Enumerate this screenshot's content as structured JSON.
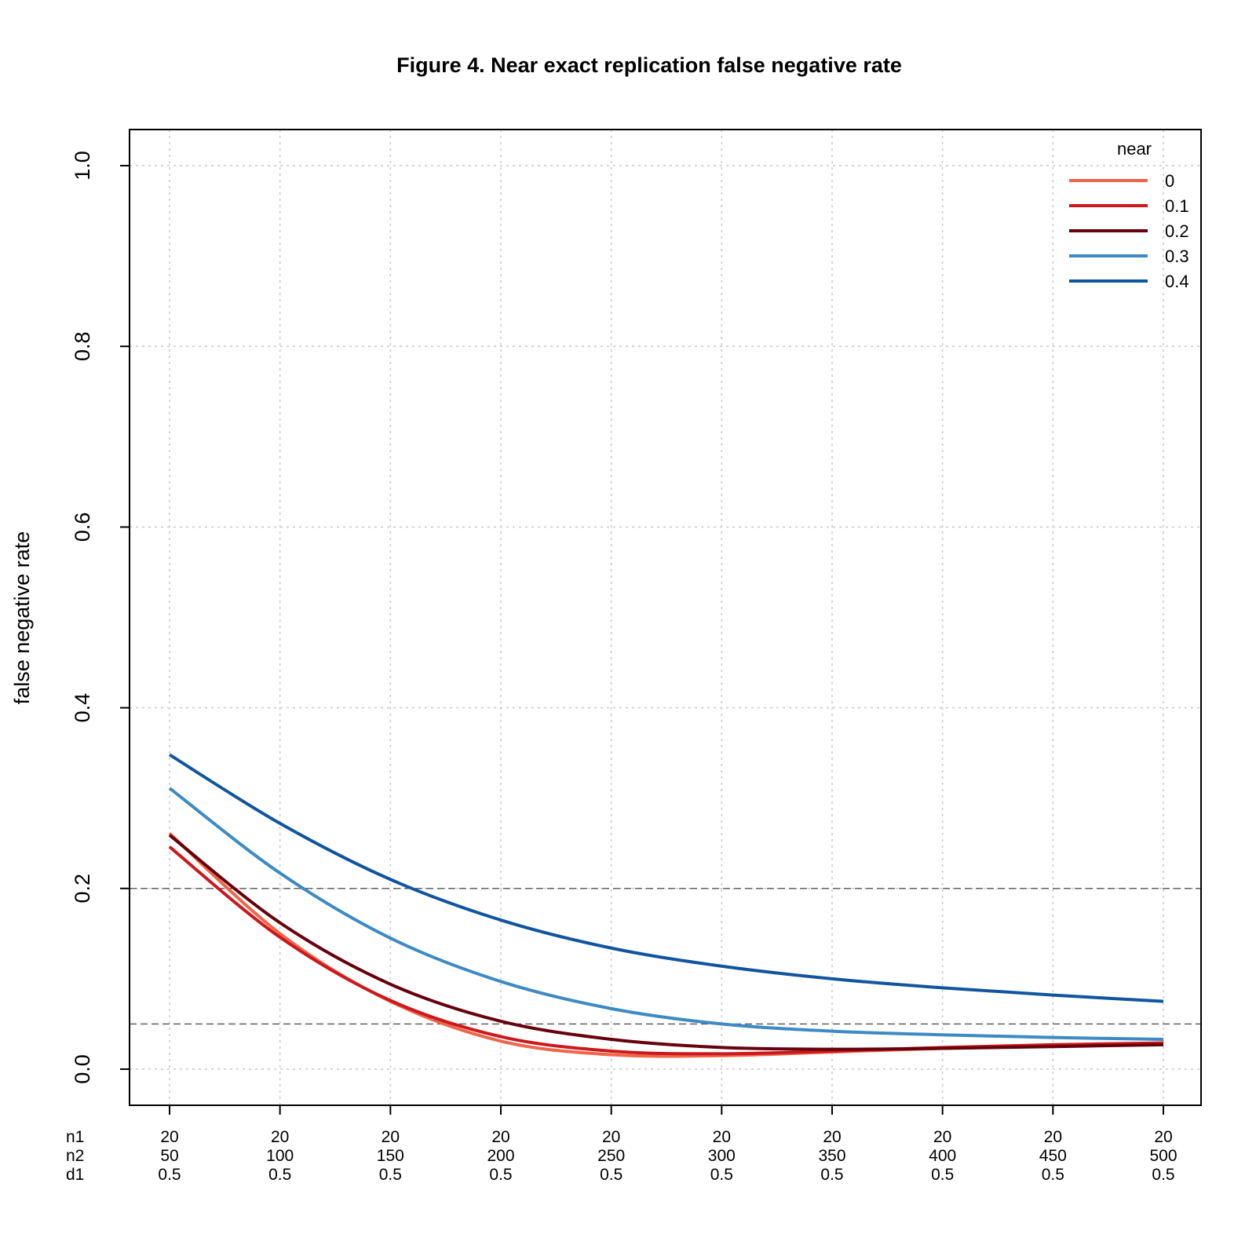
{
  "chart_data": {
    "type": "line",
    "title": "Figure 4. Near exact replication false negative rate",
    "xlabel": "",
    "ylabel": "false negative rate",
    "ylim": [
      -0.04,
      1.04
    ],
    "yticks": [
      "0.0",
      "0.2",
      "0.4",
      "0.6",
      "0.8",
      "1.0"
    ],
    "x_row_labels": [
      "n1",
      "n2",
      "d1"
    ],
    "x": [
      50,
      100,
      150,
      200,
      250,
      300,
      350,
      400,
      450,
      500
    ],
    "x_tick_rows": {
      "n1": [
        "20",
        "20",
        "20",
        "20",
        "20",
        "20",
        "20",
        "20",
        "20",
        "20"
      ],
      "n2": [
        "50",
        "100",
        "150",
        "200",
        "250",
        "300",
        "350",
        "400",
        "450",
        "500"
      ],
      "d1": [
        "0.5",
        "0.5",
        "0.5",
        "0.5",
        "0.5",
        "0.5",
        "0.5",
        "0.5",
        "0.5",
        "0.5"
      ]
    },
    "hlines": [
      0.2,
      0.05
    ],
    "grid": true,
    "legend": {
      "title": "near",
      "position": "top-right"
    },
    "series": [
      {
        "name": "0",
        "color": "#ef6548",
        "values": [
          0.261,
          0.15,
          0.075,
          0.031,
          0.016,
          0.015,
          0.019,
          0.023,
          0.026,
          0.029
        ]
      },
      {
        "name": "0.1",
        "color": "#cb181d",
        "values": [
          0.246,
          0.146,
          0.076,
          0.036,
          0.02,
          0.017,
          0.02,
          0.024,
          0.027,
          0.029
        ]
      },
      {
        "name": "0.2",
        "color": "#67000d",
        "values": [
          0.259,
          0.162,
          0.094,
          0.053,
          0.033,
          0.024,
          0.022,
          0.023,
          0.025,
          0.027
        ]
      },
      {
        "name": "0.3",
        "color": "#3d8ac4",
        "values": [
          0.311,
          0.217,
          0.145,
          0.097,
          0.067,
          0.05,
          0.042,
          0.038,
          0.035,
          0.033
        ]
      },
      {
        "name": "0.4",
        "color": "#11559e",
        "values": [
          0.348,
          0.272,
          0.21,
          0.165,
          0.134,
          0.114,
          0.1,
          0.09,
          0.082,
          0.075
        ]
      }
    ]
  }
}
